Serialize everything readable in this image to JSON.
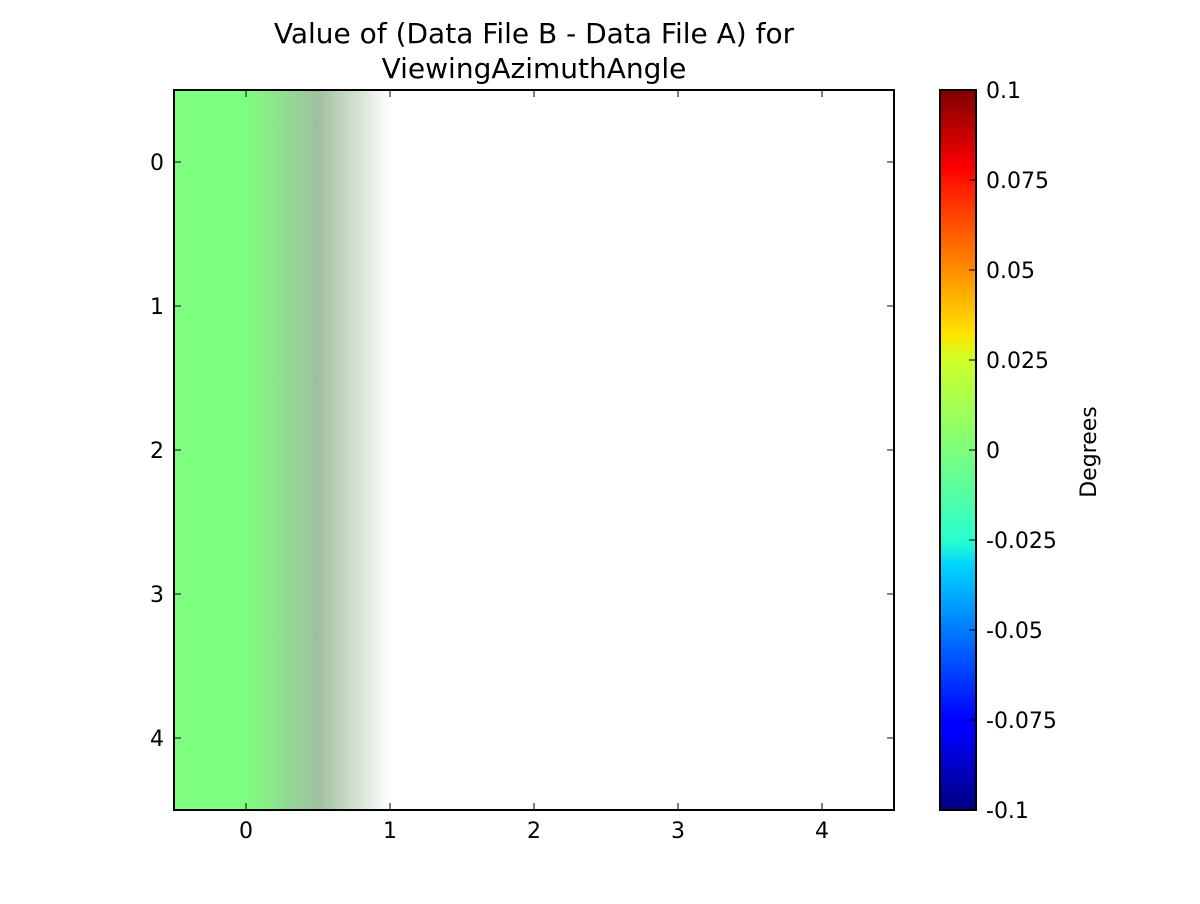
{
  "chart_data": {
    "type": "heatmap",
    "title_lines": [
      "Value of (Data File B - Data File A) for",
      "ViewingAzimuthAngle"
    ],
    "x_ticks": [
      0,
      1,
      2,
      3,
      4
    ],
    "y_ticks": [
      0,
      1,
      2,
      3,
      4
    ],
    "xlim": [
      -0.5,
      4.5
    ],
    "ylim": [
      4.5,
      -0.5
    ],
    "grid": false,
    "image": {
      "columns": 5,
      "rows": 5,
      "values": [
        [
          0,
          null,
          null,
          null,
          null
        ],
        [
          0,
          null,
          null,
          null,
          null
        ],
        [
          0,
          null,
          null,
          null,
          null
        ],
        [
          0,
          null,
          null,
          null,
          null
        ],
        [
          0,
          null,
          null,
          null,
          null
        ]
      ],
      "colors": {
        "zero": "#7fff7f",
        "no_data": "#ffffff"
      },
      "interpolation": "bilinear"
    },
    "colorbar": {
      "label": "Degrees",
      "range": [
        -0.1,
        0.1
      ],
      "colormap": "jet",
      "ticks": [
        {
          "value": 0.1,
          "label": "0.1"
        },
        {
          "value": 0.075,
          "label": "0.075"
        },
        {
          "value": 0.05,
          "label": "0.05"
        },
        {
          "value": 0.025,
          "label": "0.025"
        },
        {
          "value": 0,
          "label": "0"
        },
        {
          "value": -0.025,
          "label": "-0.025"
        },
        {
          "value": -0.05,
          "label": "-0.05"
        },
        {
          "value": -0.075,
          "label": "-0.075"
        },
        {
          "value": -0.1,
          "label": "-0.1"
        }
      ],
      "stops": [
        {
          "pos": 0.0,
          "color": "#000080"
        },
        {
          "pos": 0.11,
          "color": "#0000ff"
        },
        {
          "pos": 0.125,
          "color": "#0000ff"
        },
        {
          "pos": 0.34,
          "color": "#00d4ff"
        },
        {
          "pos": 0.375,
          "color": "#29ffce"
        },
        {
          "pos": 0.5,
          "color": "#7dff7a"
        },
        {
          "pos": 0.625,
          "color": "#ceff29"
        },
        {
          "pos": 0.66,
          "color": "#ffe500"
        },
        {
          "pos": 0.875,
          "color": "#ff1300"
        },
        {
          "pos": 0.89,
          "color": "#ff0000"
        },
        {
          "pos": 1.0,
          "color": "#800000"
        }
      ]
    }
  }
}
